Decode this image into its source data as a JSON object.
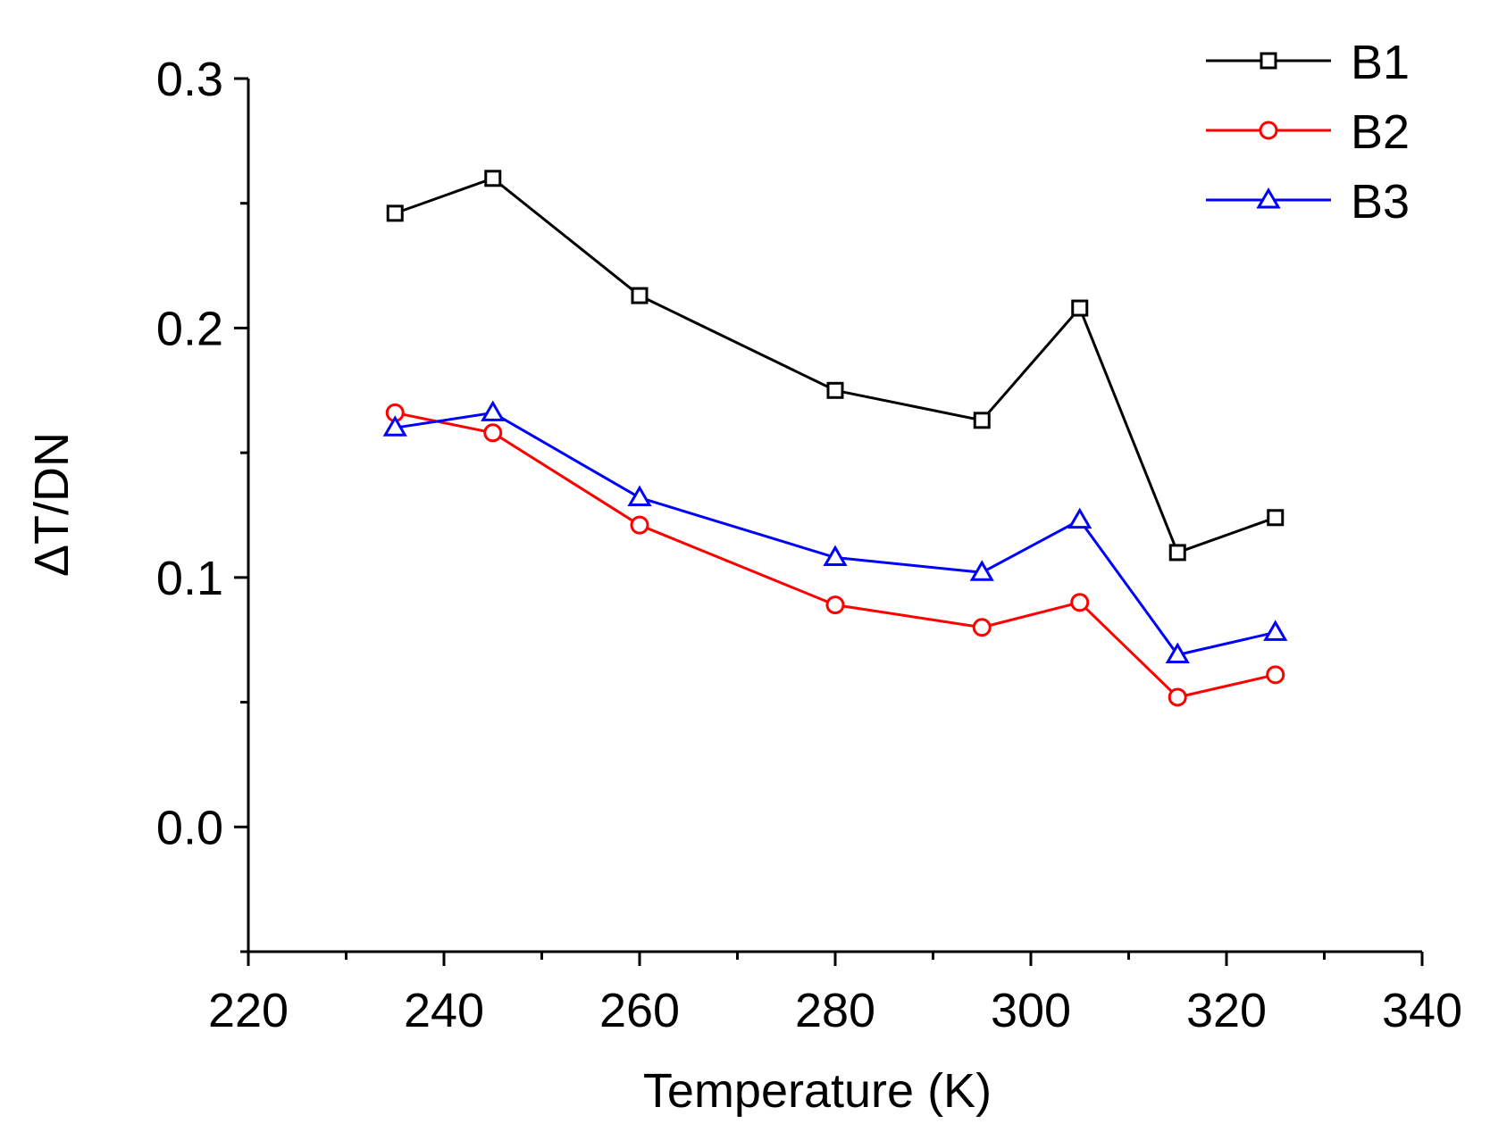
{
  "chart_data": {
    "type": "line",
    "title": "",
    "xlabel": "Temperature (K)",
    "ylabel": "ΔT/DN",
    "xlim": [
      220,
      340
    ],
    "ylim": [
      -0.05,
      0.3
    ],
    "x_ticks": [
      220,
      240,
      260,
      280,
      300,
      320,
      340
    ],
    "x_tick_labels": [
      "220",
      "240",
      "260",
      "280",
      "300",
      "320",
      "340"
    ],
    "y_ticks": [
      0.0,
      0.1,
      0.2,
      0.3
    ],
    "y_tick_labels": [
      "0.0",
      "0.1",
      "0.2",
      "0.3"
    ],
    "grid": false,
    "legend_position": "top-right",
    "x": [
      235,
      245,
      260,
      280,
      295,
      305,
      315,
      325
    ],
    "series": [
      {
        "name": "B1",
        "color": "#000000",
        "marker": "square",
        "values": [
          0.246,
          0.26,
          0.213,
          0.175,
          0.163,
          0.208,
          0.11,
          0.124
        ]
      },
      {
        "name": "B2",
        "color": "#ff0000",
        "marker": "circle",
        "values": [
          0.166,
          0.158,
          0.121,
          0.089,
          0.08,
          0.09,
          0.052,
          0.061
        ]
      },
      {
        "name": "B3",
        "color": "#0000ff",
        "marker": "triangle",
        "values": [
          0.16,
          0.166,
          0.132,
          0.108,
          0.102,
          0.123,
          0.069,
          0.078
        ]
      }
    ]
  }
}
